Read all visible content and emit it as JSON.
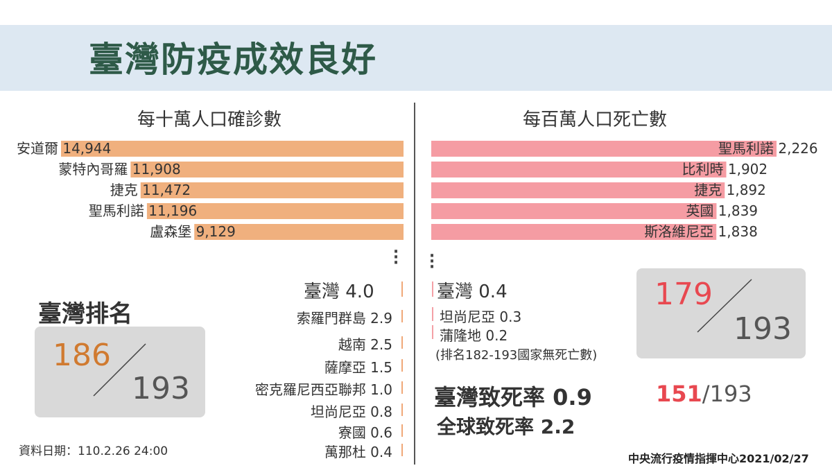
{
  "title": "臺灣防疫成效良好",
  "left": {
    "subtitle": "每十萬人口確診數",
    "ranking_label": "臺灣排名",
    "rank": "186",
    "rank_total": "193",
    "taiwan_item": "臺灣 4.0",
    "low_items": [
      "索羅門群島 2.9",
      "越南 2.5",
      "薩摩亞 1.5",
      "密克羅尼西亞聯邦 1.0",
      "坦尚尼亞 0.8",
      "寮國 0.6",
      "萬那杜 0.4"
    ],
    "date_note": "資料日期：110.2.26 24:00"
  },
  "right": {
    "subtitle": "每百萬人口死亡數",
    "taiwan_item": "臺灣 0.4",
    "low_items": [
      "坦尚尼亞 0.3",
      "蒲隆地 0.2"
    ],
    "no_death_note": "(排名182-193國家無死亡數)",
    "rank": "179",
    "rank_total": "193",
    "cfr_taiwan": "臺灣致死率 0.9",
    "cfr_global": "全球致死率 2.2",
    "cfr_rank": "151",
    "cfr_rank_total": "/193"
  },
  "source": "中央流行疫情指揮中心2021/02/27",
  "colors": {
    "cases_bar": "#f0b07e",
    "deaths_bar": "#f59ca3",
    "rank_orange": "#d07a30",
    "rank_red": "#e84850",
    "title_green": "#2e5a48"
  },
  "chart_data": [
    {
      "type": "bar",
      "title": "每十萬人口確診數",
      "categories": [
        "安道爾",
        "蒙特內哥羅",
        "捷克",
        "聖馬利諾",
        "盧森堡"
      ],
      "values": [
        14944,
        11908,
        11472,
        11196,
        9129
      ],
      "labels": [
        "安道爾 14,944",
        "蒙特內哥羅 11,908",
        "捷克 11,472",
        "聖馬利諾 11,196",
        "盧森堡 9,129"
      ],
      "orientation": "horizontal-right-aligned"
    },
    {
      "type": "bar",
      "title": "每百萬人口死亡數",
      "categories": [
        "聖馬利諾",
        "比利時",
        "捷克",
        "英國",
        "斯洛維尼亞"
      ],
      "values": [
        2226,
        1902,
        1892,
        1839,
        1838
      ],
      "labels": [
        "聖馬利諾 2,226",
        "比利時 1,902",
        "捷克 1,892",
        "英國 1,839",
        "斯洛維尼亞 1,838"
      ],
      "orientation": "horizontal-left-aligned"
    }
  ]
}
